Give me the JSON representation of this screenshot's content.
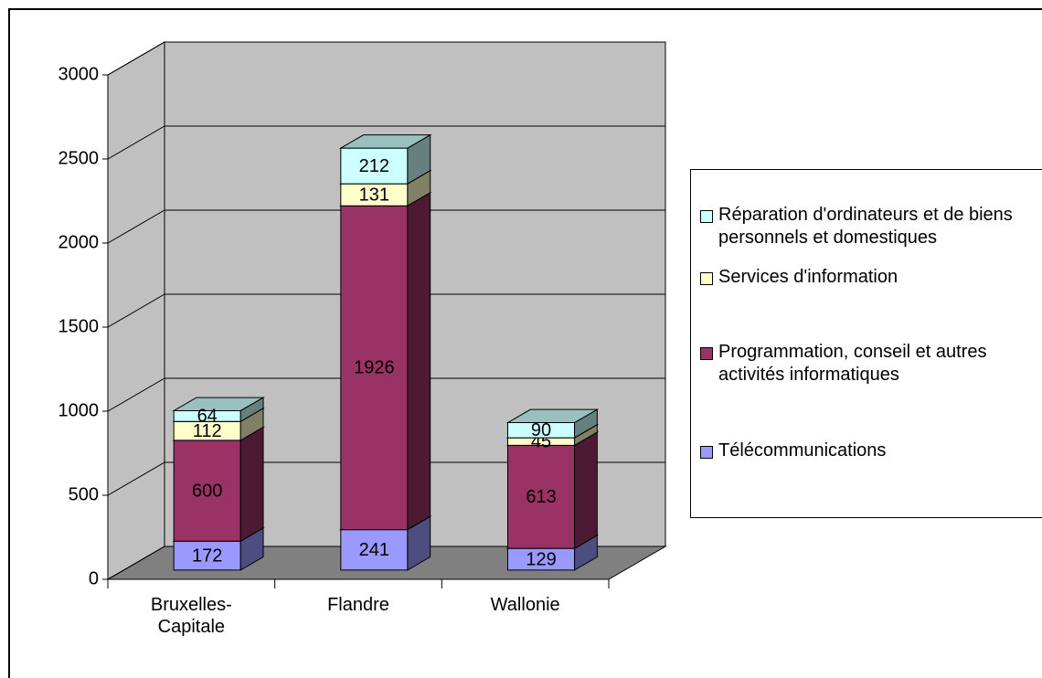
{
  "chart_data": {
    "type": "bar3d_stacked",
    "categories": [
      "Bruxelles-Capitale",
      "Flandre",
      "Wallonie"
    ],
    "series": [
      {
        "name": "Télécommunications",
        "color": "#9999ff",
        "values": [
          172,
          241,
          129
        ]
      },
      {
        "name": "Programmation, conseil et autres activités informatiques",
        "color": "#993366",
        "values": [
          600,
          1926,
          613
        ]
      },
      {
        "name": "Services d'information",
        "color": "#ffffcc",
        "values": [
          112,
          131,
          45
        ]
      },
      {
        "name": "Réparation d'ordinateurs et de biens personnels et domestiques",
        "color": "#ccffff",
        "values": [
          64,
          212,
          90
        ]
      }
    ],
    "ylim": [
      0,
      3000
    ],
    "yticks": [
      0,
      500,
      1000,
      1500,
      2000,
      2500,
      3000
    ],
    "grid": true,
    "legend": "right"
  }
}
